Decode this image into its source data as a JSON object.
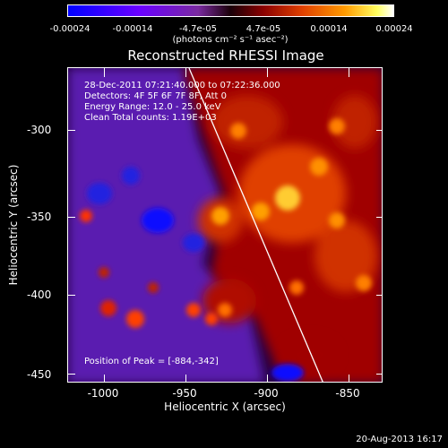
{
  "colorbar": {
    "ticks": [
      "-0.00024",
      "-0.00014",
      "-4.7e-05",
      "4.7e-05",
      "0.00014",
      "0.00024"
    ],
    "unit": "(photons cm⁻² s⁻¹ asec⁻²)"
  },
  "title": "Reconstructed RHESSI Image",
  "info": {
    "line1": "28-Dec-2011 07:21:40.000 to 07:22:36.000",
    "line2": "Detectors: 4F 5F 6F 7F 8F, Att 0",
    "line3": "Energy Range: 12.0 - 25.0 keV",
    "line4": "Clean    Total counts: 1.19E+03",
    "peak": "Position of Peak = [-884,-342]"
  },
  "axes": {
    "xlabel": "Heliocentric X (arcsec)",
    "ylabel": "Heliocentric Y (arcsec)",
    "xticks": [
      "-1000",
      "-950",
      "-900",
      "-850"
    ],
    "yticks": [
      "-300",
      "-350",
      "-400",
      "-450"
    ]
  },
  "footer": {
    "date": "20-Aug-2013 16:17"
  }
}
